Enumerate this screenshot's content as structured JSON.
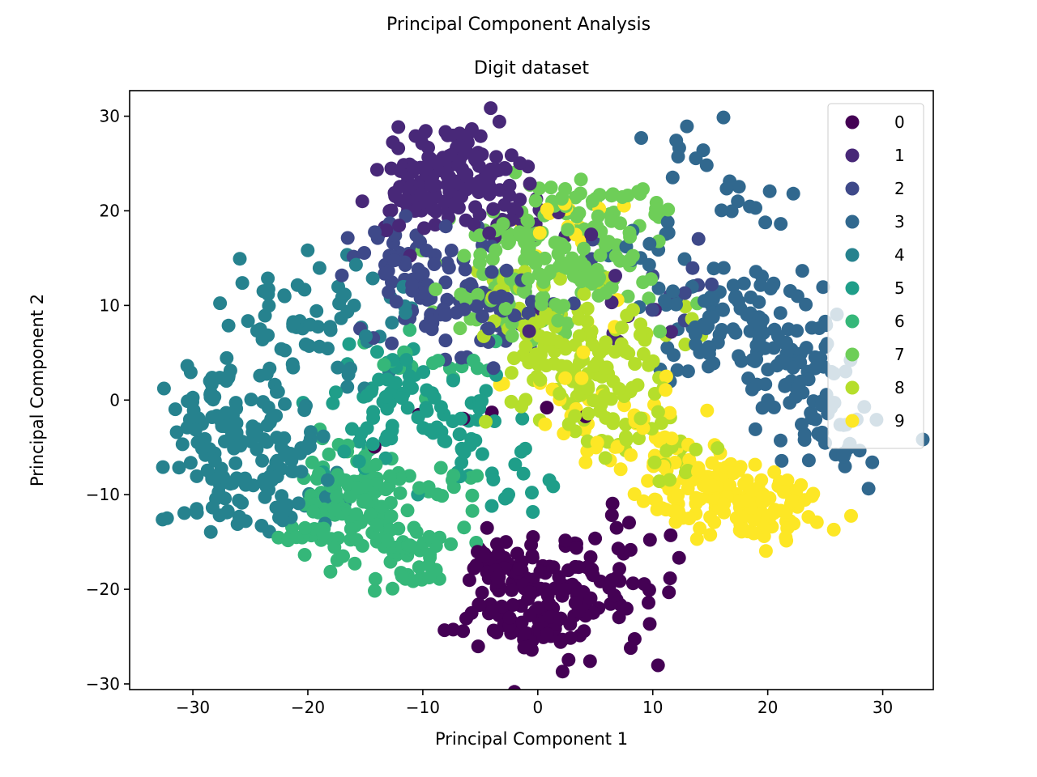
{
  "figure": {
    "suptitle": "Principal Component Analysis",
    "title": "Digit dataset",
    "xlabel": "Principal Component 1",
    "ylabel": "Principal Component 2"
  },
  "chart_data": {
    "type": "scatter",
    "suptitle": "Principal Component Analysis",
    "title": "Digit dataset",
    "xlabel": "Principal Component 1",
    "ylabel": "Principal Component 2",
    "xlim": [
      -35.5,
      34.4
    ],
    "ylim": [
      -30.6,
      32.7
    ],
    "xticks": [
      -30,
      -20,
      -10,
      0,
      10,
      20,
      30
    ],
    "yticks": [
      -30,
      -20,
      -10,
      0,
      10,
      20,
      30
    ],
    "grid": false,
    "legend_position": "upper right",
    "legend_framealpha": 0.8,
    "marker_radius_px": 8.5,
    "colormap": "viridis",
    "cluster_fields": [
      "cx",
      "cy",
      "sx",
      "sy",
      "n"
    ],
    "series": [
      {
        "name": "0",
        "color": "#440154",
        "clusters": [
          [
            0.5,
            -21,
            3.8,
            3.0,
            150
          ],
          [
            -3,
            -16.5,
            2.2,
            1.5,
            25
          ],
          [
            9,
            -17.5,
            1.8,
            1.8,
            12
          ],
          [
            5,
            -13,
            1.5,
            1.2,
            6
          ],
          [
            -7,
            -2,
            4,
            3,
            6
          ]
        ]
      },
      {
        "name": "1",
        "color": "#482878",
        "clusters": [
          [
            -7.5,
            24.5,
            3.0,
            2.2,
            110
          ],
          [
            -11,
            20.5,
            2.0,
            1.8,
            35
          ],
          [
            -3.5,
            20,
            2.0,
            2.0,
            25
          ],
          [
            4,
            9,
            4,
            4,
            12
          ]
        ]
      },
      {
        "name": "2",
        "color": "#3e4989",
        "clusters": [
          [
            -8,
            11,
            3.5,
            3.0,
            70
          ],
          [
            -12,
            15,
            2.5,
            2.0,
            30
          ],
          [
            -2,
            8,
            2.5,
            2.5,
            20
          ],
          [
            11,
            12,
            2.5,
            2.5,
            12
          ]
        ]
      },
      {
        "name": "3",
        "color": "#31688e",
        "clusters": [
          [
            16.5,
            9,
            3.8,
            3.2,
            90
          ],
          [
            21.5,
            3,
            3.0,
            3.0,
            50
          ],
          [
            25,
            -2,
            2.5,
            2.5,
            30
          ],
          [
            14,
            26.5,
            2.2,
            1.8,
            10
          ],
          [
            19.5,
            21,
            2.5,
            2.5,
            12
          ],
          [
            27,
            -7,
            2.0,
            1.5,
            8
          ],
          [
            10,
            17,
            2.5,
            2.5,
            12
          ]
        ]
      },
      {
        "name": "4",
        "color": "#26828e",
        "clusters": [
          [
            -25,
            -4,
            3.2,
            3.5,
            90
          ],
          [
            -28.5,
            -1,
            2.0,
            3.0,
            30
          ],
          [
            -22,
            -10,
            2.5,
            2.0,
            30
          ],
          [
            -21,
            6,
            3.0,
            2.5,
            30
          ],
          [
            -17,
            12,
            3.0,
            2.2,
            20
          ],
          [
            -24,
            12,
            2.0,
            1.5,
            8
          ],
          [
            -14,
            5,
            2.0,
            2.0,
            10
          ],
          [
            -28,
            -11,
            2.0,
            2.0,
            15
          ]
        ]
      },
      {
        "name": "5",
        "color": "#1f9e89",
        "clusters": [
          [
            -11.5,
            0.5,
            3.0,
            2.8,
            55
          ],
          [
            -6.5,
            -4,
            2.5,
            2.5,
            25
          ],
          [
            -2,
            -9.5,
            2.5,
            1.8,
            14
          ],
          [
            -15,
            -4,
            2.0,
            2.0,
            15
          ]
        ]
      },
      {
        "name": "6",
        "color": "#35b779",
        "clusters": [
          [
            -16,
            -10.5,
            2.6,
            2.6,
            110
          ],
          [
            -12,
            -15.5,
            2.4,
            2.0,
            45
          ],
          [
            -19,
            -15,
            1.8,
            1.5,
            15
          ],
          [
            -9,
            4,
            2.5,
            2.5,
            18
          ],
          [
            -7,
            -9,
            1.8,
            1.5,
            10
          ],
          [
            -11,
            -19,
            1.5,
            1.5,
            8
          ]
        ]
      },
      {
        "name": "7",
        "color": "#6ece58",
        "clusters": [
          [
            1.5,
            15.5,
            4.2,
            3.6,
            150
          ],
          [
            6,
            20,
            2.5,
            2.0,
            30
          ],
          [
            -2,
            10,
            2.5,
            2.0,
            25
          ]
        ]
      },
      {
        "name": "8",
        "color": "#b5de2b",
        "clusters": [
          [
            3.5,
            4.5,
            4.2,
            3.4,
            120
          ],
          [
            8,
            -2,
            2.8,
            2.2,
            30
          ],
          [
            11,
            -6.5,
            2.0,
            1.5,
            14
          ],
          [
            -1,
            11,
            2.5,
            2.0,
            20
          ]
        ]
      },
      {
        "name": "9",
        "color": "#fde725",
        "clusters": [
          [
            16,
            -10,
            3.2,
            2.0,
            90
          ],
          [
            21,
            -11.5,
            2.2,
            1.6,
            60
          ],
          [
            12,
            -7,
            2.0,
            1.8,
            25
          ],
          [
            3.5,
            0.5,
            4.5,
            3.5,
            30
          ],
          [
            2.5,
            18.5,
            2.5,
            1.5,
            14
          ],
          [
            7,
            -5,
            2.0,
            1.5,
            10
          ]
        ]
      }
    ],
    "legend_labels": [
      "0",
      "1",
      "2",
      "3",
      "4",
      "5",
      "6",
      "7",
      "8",
      "9"
    ]
  },
  "style": {
    "axes_edge_color": "#000000",
    "tick_color": "#000000",
    "legend_edge_color": "#cccccc",
    "legend_face_color": "#ffffff",
    "background_color": "#ffffff"
  }
}
